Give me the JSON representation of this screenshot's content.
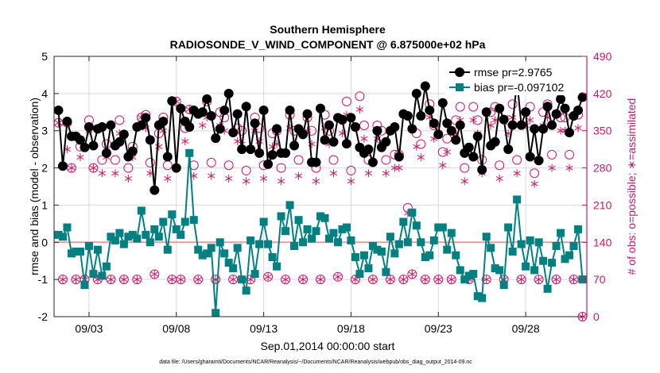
{
  "chart_data": {
    "type": "line",
    "title": "Southern Hemisphere",
    "subtitle": "RADIOSONDE_V_WIND_COMPONENT @ 6.875000e+02 hPa",
    "xlabel": "Sep.01,2014 00:00:00 start",
    "ylabel": "rmse and bias (model - observation)",
    "y2label": "# of obs: o=possible; ∗=assimilated",
    "footnote": "data file: /Users/gharamti/Documents/NCAR/Reanalysis/~/Documents/NCAR/Reanalysis/webpub/obs_diag_output_2014-09.nc",
    "xlim": [
      1,
      31.5
    ],
    "ylim": [
      -2,
      5
    ],
    "y2lim": [
      0,
      490
    ],
    "x_ticks": [
      {
        "x": 3,
        "label": "09/03"
      },
      {
        "x": 8,
        "label": "09/08"
      },
      {
        "x": 13,
        "label": "09/13"
      },
      {
        "x": 18,
        "label": "09/18"
      },
      {
        "x": 23,
        "label": "09/23"
      },
      {
        "x": 28,
        "label": "09/28"
      }
    ],
    "y_ticks": [
      -2,
      -1,
      0,
      1,
      2,
      3,
      4,
      5
    ],
    "y2_ticks": [
      0,
      70,
      140,
      210,
      280,
      350,
      420,
      490
    ],
    "grid": true,
    "legend_position": "top-right",
    "legend": [
      "rmse pr=2.9765",
      "bias pr=-0.097102"
    ],
    "zero_line": 0,
    "colors": {
      "rmse": "#000000",
      "bias": "#008080",
      "obs": "#cc1a66",
      "zero": "#e0a0a0",
      "grid": "#d9d9d9"
    },
    "x": [
      1.25,
      1.5,
      1.75,
      2.0,
      2.25,
      2.5,
      2.75,
      3.0,
      3.25,
      3.5,
      3.75,
      4.0,
      4.25,
      4.5,
      4.75,
      5.0,
      5.25,
      5.5,
      5.75,
      6.0,
      6.25,
      6.5,
      6.75,
      7.0,
      7.25,
      7.5,
      7.75,
      8.0,
      8.25,
      8.5,
      8.75,
      9.0,
      9.25,
      9.5,
      9.75,
      10.0,
      10.25,
      10.5,
      10.75,
      11.0,
      11.25,
      11.5,
      11.75,
      12.0,
      12.25,
      12.5,
      12.75,
      13.0,
      13.25,
      13.5,
      13.75,
      14.0,
      14.25,
      14.5,
      14.75,
      15.0,
      15.25,
      15.5,
      15.75,
      16.0,
      16.25,
      16.5,
      16.75,
      17.0,
      17.25,
      17.5,
      17.75,
      18.0,
      18.25,
      18.5,
      18.75,
      19.0,
      19.25,
      19.5,
      19.75,
      20.0,
      20.25,
      20.5,
      20.75,
      21.0,
      21.25,
      21.5,
      21.75,
      22.0,
      22.25,
      22.5,
      22.75,
      23.0,
      23.25,
      23.5,
      23.75,
      24.0,
      24.25,
      24.5,
      24.75,
      25.0,
      25.25,
      25.5,
      25.75,
      26.0,
      26.25,
      26.5,
      26.75,
      27.0,
      27.25,
      27.5,
      27.75,
      28.0,
      28.25,
      28.5,
      28.75,
      29.0,
      29.25,
      29.5,
      29.75,
      30.0,
      30.25,
      30.5,
      30.75,
      31.0,
      31.25
    ],
    "series": [
      {
        "name": "rmse pr=2.9765",
        "axis": "left",
        "style": "line-circle",
        "values": [
          3.55,
          2.05,
          3.25,
          2.85,
          2.85,
          2.75,
          2.55,
          3.1,
          2.6,
          3.05,
          3.1,
          2.4,
          3.15,
          2.6,
          2.7,
          2.9,
          2.3,
          2.45,
          3.1,
          3.15,
          3.35,
          2.75,
          1.4,
          3.15,
          3.25,
          2.3,
          3.8,
          2.0,
          3.6,
          3.25,
          3.1,
          3.55,
          3.45,
          3.5,
          3.85,
          3.4,
          2.8,
          3.05,
          3.55,
          4.0,
          2.95,
          3.45,
          2.5,
          3.65,
          2.5,
          3.2,
          2.4,
          3.55,
          2.1,
          2.35,
          3.05,
          2.4,
          2.4,
          3.55,
          2.6,
          3.05,
          2.9,
          3.45,
          2.15,
          2.15,
          3.6,
          2.75,
          3.15,
          2.7,
          3.35,
          3.3,
          2.65,
          3.35,
          3.1,
          2.55,
          2.4,
          2.5,
          2.15,
          3.0,
          2.55,
          2.7,
          3.0,
          3.1,
          2.3,
          3.45,
          3.4,
          3.05,
          4.0,
          3.4,
          4.2,
          3.55,
          3.2,
          2.9,
          3.75,
          3.2,
          3.0,
          2.75,
          3.15,
          2.4,
          2.55,
          2.3,
          2.85,
          1.95,
          3.5,
          2.6,
          2.7,
          3.6,
          3.3,
          2.5,
          3.15,
          4.35,
          3.15,
          3.5,
          2.3,
          3.05,
          2.2,
          3.05,
          3.65,
          3.15,
          3.45,
          3.85,
          3.6,
          2.95,
          3.4,
          3.55,
          3.9
        ],
        "color": "#000000"
      },
      {
        "name": "bias pr=-0.097102",
        "axis": "left",
        "style": "line-square",
        "values": [
          0.2,
          0.15,
          0.4,
          -0.3,
          -0.25,
          -0.25,
          -1.15,
          -0.1,
          -0.85,
          -0.2,
          -0.9,
          -0.65,
          0.15,
          0.05,
          0.25,
          -0.05,
          0.15,
          0.2,
          0.1,
          0.85,
          0.2,
          0.0,
          0.35,
          0.15,
          0.55,
          -0.2,
          0.75,
          0.35,
          0.2,
          0.55,
          2.4,
          0.6,
          -0.2,
          -0.35,
          -0.3,
          -0.15,
          -1.9,
          0.0,
          -0.3,
          -0.55,
          -0.7,
          -0.15,
          -1.0,
          -1.3,
          0.05,
          -0.85,
          -0.05,
          0.55,
          -0.05,
          -0.4,
          -0.65,
          0.7,
          0.3,
          1.0,
          -0.1,
          0.6,
          0.0,
          0.35,
          0.1,
          0.3,
          0.7,
          0.65,
          0.1,
          0.25,
          0.0,
          0.35,
          0.4,
          0.05,
          -0.4,
          -0.85,
          -0.35,
          -0.7,
          -0.1,
          -0.2,
          -0.25,
          -0.8,
          0.15,
          -0.3,
          -0.05,
          0.55,
          0.0,
          0.8,
          0.45,
          0.0,
          -0.4,
          -0.35,
          0.05,
          0.4,
          0.4,
          -0.2,
          0.25,
          -0.35,
          -0.75,
          -1.0,
          -0.9,
          -0.85,
          -1.45,
          -1.5,
          0.15,
          -0.15,
          -0.7,
          -0.75,
          -1.15,
          0.4,
          -0.25,
          1.15,
          -0.05,
          -0.65,
          0.05,
          -0.75,
          0.0,
          -0.5,
          -1.25,
          -0.55,
          -0.1,
          0.25,
          -0.45,
          -0.35,
          -0.1,
          0.35,
          -1.0
        ],
        "color": "#008080"
      },
      {
        "name": "",
        "axis": "right",
        "style": "circle-marker",
        "values": [
          365,
          70,
          365,
          280,
          70,
          320,
          70,
          370,
          280,
          70,
          295,
          325,
          70,
          295,
          370,
          70,
          280,
          320,
          70,
          375,
          380,
          290,
          80,
          345,
          375,
          285,
          70,
          405,
          70,
          355,
          390,
          285,
          70,
          385,
          405,
          290,
          70,
          385,
          375,
          285,
          70,
          355,
          350,
          275,
          70,
          375,
          355,
          285,
          75,
          345,
          350,
          280,
          70,
          380,
          350,
          295,
          70,
          375,
          350,
          280,
          70,
          380,
          350,
          295,
          75,
          370,
          405,
          275,
          70,
          415,
          360,
          295,
          70,
          360,
          350,
          295,
          70,
          305,
          305,
          70,
          205,
          80,
          345,
          325,
          70,
          400,
          360,
          70,
          310,
          335,
          70,
          370,
          395,
          280,
          70,
          395,
          370,
          295,
          70,
          385,
          395,
          285,
          70,
          370,
          400,
          295,
          70,
          385,
          395,
          270,
          70,
          385,
          400,
          305,
          70,
          375,
          375,
          305,
          70,
          380,
          0
        ],
        "color": "#cc1a66"
      },
      {
        "name": "",
        "axis": "right",
        "style": "star-marker",
        "values": [
          365,
          70,
          315,
          280,
          70,
          300,
          70,
          350,
          280,
          70,
          270,
          300,
          70,
          270,
          345,
          70,
          260,
          300,
          70,
          375,
          355,
          270,
          80,
          320,
          350,
          260,
          70,
          405,
          70,
          330,
          390,
          265,
          70,
          360,
          375,
          265,
          70,
          360,
          350,
          260,
          70,
          330,
          325,
          255,
          70,
          350,
          330,
          260,
          75,
          320,
          325,
          255,
          70,
          355,
          325,
          265,
          70,
          350,
          325,
          255,
          70,
          355,
          325,
          270,
          75,
          345,
          380,
          255,
          70,
          390,
          335,
          270,
          70,
          335,
          325,
          270,
          70,
          280,
          280,
          70,
          195,
          80,
          320,
          300,
          70,
          375,
          335,
          70,
          285,
          310,
          70,
          345,
          370,
          255,
          70,
          370,
          345,
          270,
          70,
          360,
          370,
          260,
          70,
          345,
          375,
          270,
          70,
          360,
          370,
          250,
          70,
          360,
          375,
          280,
          70,
          350,
          350,
          280,
          70,
          355,
          0
        ],
        "color": "#cc1a66"
      }
    ]
  }
}
